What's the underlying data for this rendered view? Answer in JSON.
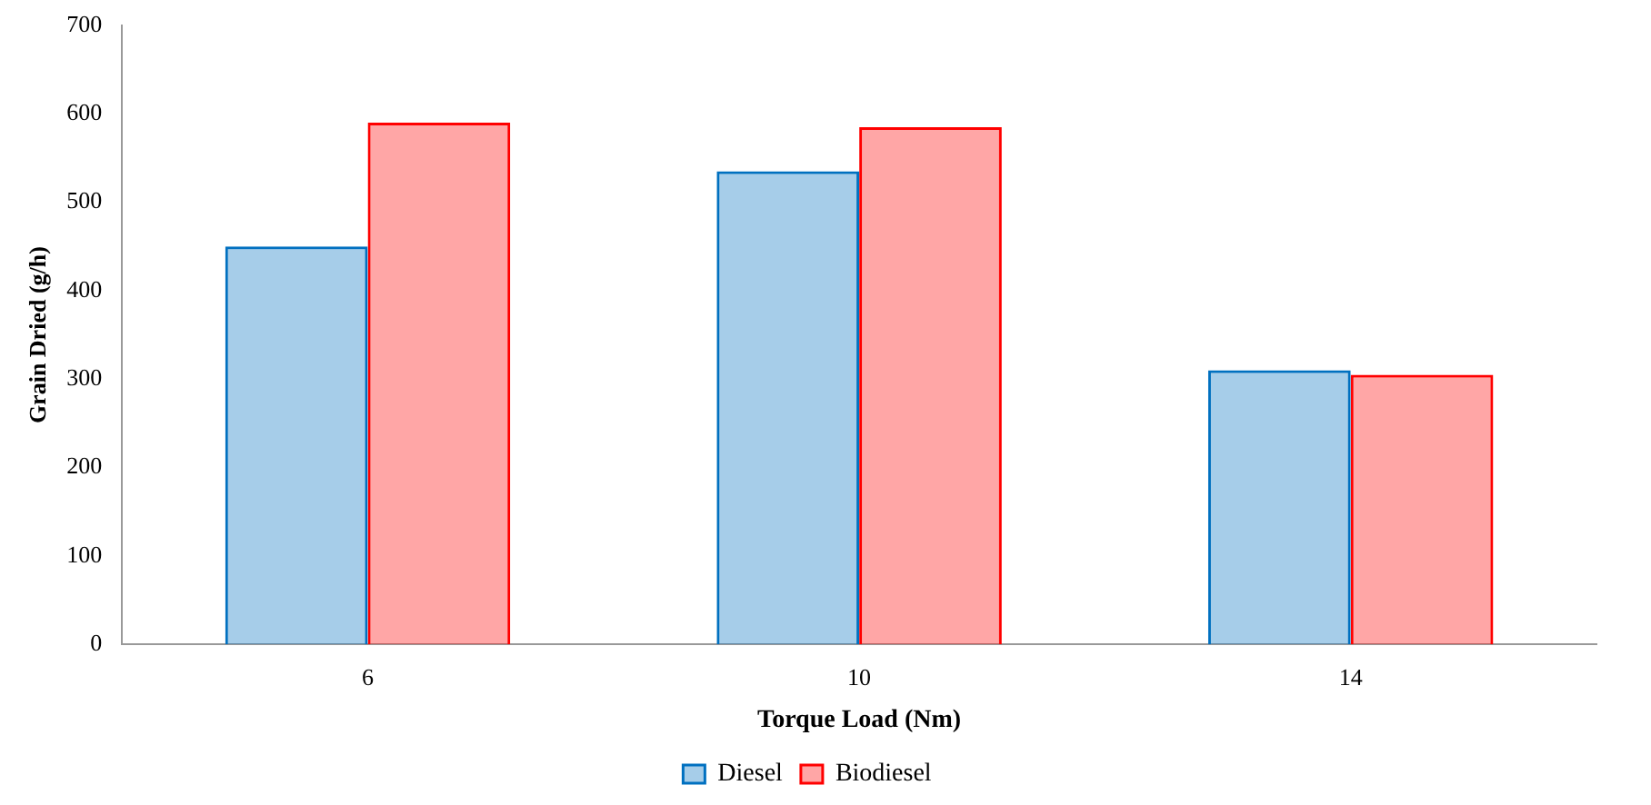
{
  "chart_data": {
    "type": "bar",
    "xlabel": "Torque Load (Nm)",
    "ylabel": "Grain Dried (g/h)",
    "categories": [
      "6",
      "10",
      "14"
    ],
    "series": [
      {
        "name": "Diesel",
        "color": "#0070c0",
        "values": [
          450,
          535,
          310
        ]
      },
      {
        "name": "Biodiesel",
        "color": "#ff0000",
        "values": [
          590,
          585,
          305
        ]
      }
    ],
    "ylim": [
      0,
      700
    ],
    "yticks": [
      0,
      100,
      200,
      300,
      400,
      500,
      600,
      700
    ],
    "grid": false,
    "legend": "bottom"
  }
}
